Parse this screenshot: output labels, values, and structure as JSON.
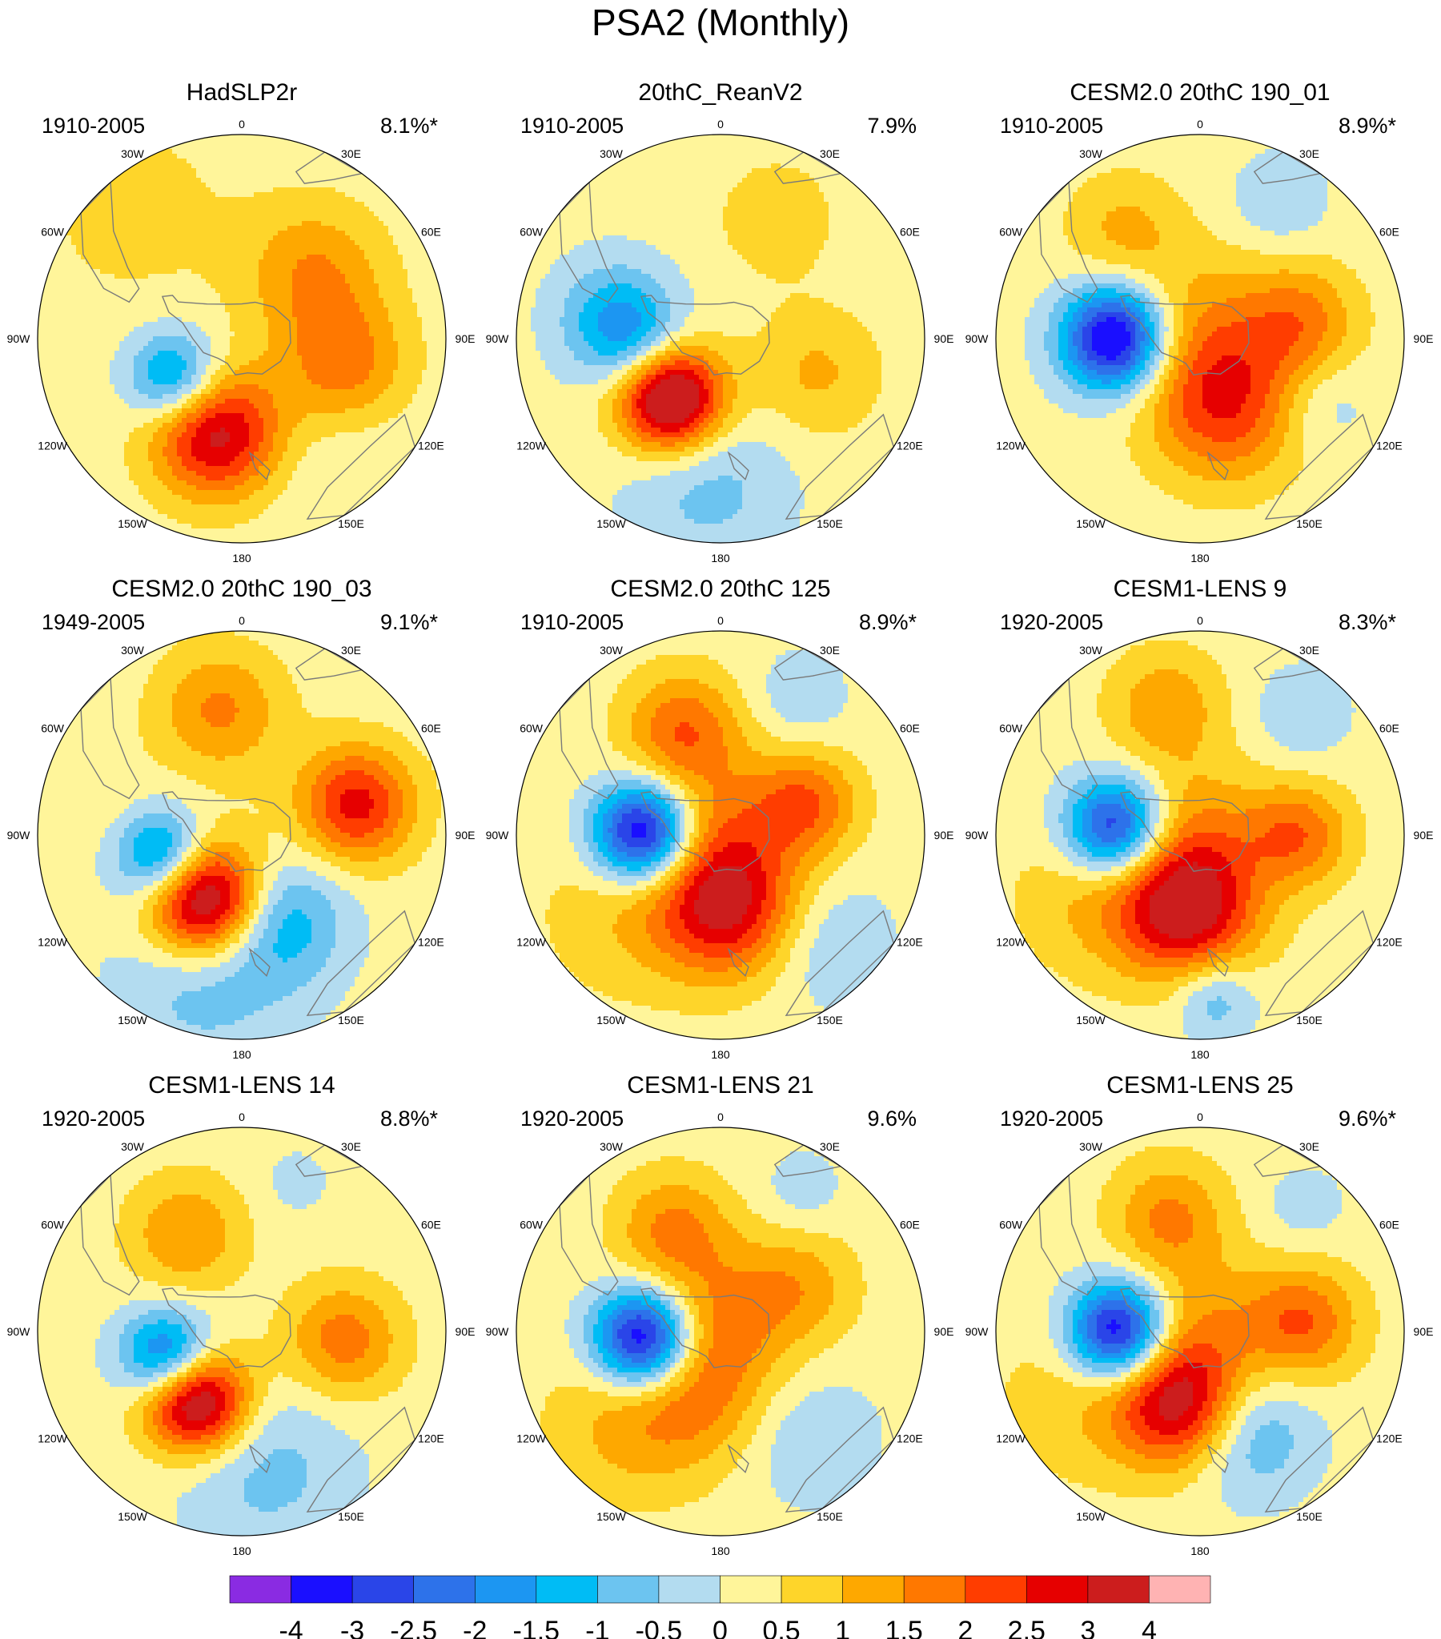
{
  "chart_data": {
    "type": "heatmap",
    "title": "PSA2 (Monthly)",
    "projection": "south-polar-stereographic",
    "longitude_labels": [
      "0",
      "30E",
      "60E",
      "90E",
      "120E",
      "150E",
      "180",
      "150W",
      "120W",
      "90W",
      "60W",
      "30W"
    ],
    "colorbar": {
      "levels": [
        "-4",
        "-3",
        "-2.5",
        "-2",
        "-1.5",
        "-1",
        "-0.5",
        "0",
        "0.5",
        "1",
        "1.5",
        "2",
        "2.5",
        "3",
        "4"
      ],
      "colors": [
        "#8a2be2",
        "#1a0fff",
        "#2a45e8",
        "#2d72ea",
        "#1c96f2",
        "#00bcf5",
        "#6cc4f0",
        "#b3dcf0",
        "#fff59a",
        "#fed52a",
        "#fea800",
        "#ff7800",
        "#ff3d00",
        "#e60000",
        "#cc1d1d",
        "#ffb3b3"
      ]
    },
    "panels": [
      {
        "name": "HadSLP2r",
        "period": "1910-2005",
        "variance": "8.1%*",
        "features": [
          {
            "lon": 48,
            "r": 0.48,
            "v": 1.3,
            "s": 0.24
          },
          {
            "lon": -120,
            "r": 0.38,
            "v": -2.3,
            "s": 0.16
          },
          {
            "lon": 105,
            "r": 0.52,
            "v": 1.6,
            "s": 0.22
          },
          {
            "lon": -165,
            "r": 0.48,
            "v": 3.1,
            "s": 0.22
          },
          {
            "lon": 140,
            "r": 0.72,
            "v": -0.3,
            "s": 0.3
          },
          {
            "lon": -40,
            "r": 0.82,
            "v": 0.45,
            "s": 0.38
          }
        ]
      },
      {
        "name": "20thC_ReanV2",
        "period": "1910-2005",
        "variance": "7.9%",
        "features": [
          {
            "lon": -80,
            "r": 0.52,
            "v": -1.6,
            "s": 0.2
          },
          {
            "lon": -140,
            "r": 0.38,
            "v": 4.2,
            "s": 0.18
          },
          {
            "lon": -175,
            "r": 0.72,
            "v": -0.9,
            "s": 0.28
          },
          {
            "lon": 110,
            "r": 0.5,
            "v": 0.9,
            "s": 0.22
          },
          {
            "lon": 25,
            "r": 0.65,
            "v": 0.6,
            "s": 0.22
          },
          {
            "lon": -95,
            "r": 0.4,
            "v": -0.9,
            "s": 0.16
          }
        ]
      },
      {
        "name": "CESM2.0 20thC 190_01",
        "period": "1910-2005",
        "variance": "8.9%*",
        "features": [
          {
            "lon": -90,
            "r": 0.42,
            "v": -4.2,
            "s": 0.18
          },
          {
            "lon": -35,
            "r": 0.65,
            "v": 0.9,
            "s": 0.2
          },
          {
            "lon": 30,
            "r": 0.78,
            "v": -0.7,
            "s": 0.16
          },
          {
            "lon": 80,
            "r": 0.5,
            "v": 1.4,
            "s": 0.2
          },
          {
            "lon": 160,
            "r": 0.35,
            "v": 2.1,
            "s": 0.26
          },
          {
            "lon": 0,
            "r": 0.05,
            "v": 1.0,
            "s": 0.28
          },
          {
            "lon": 118,
            "r": 0.68,
            "v": -0.6,
            "s": 0.16
          }
        ]
      },
      {
        "name": "CESM2.0 20thC 190_03",
        "period": "1949-2005",
        "variance": "9.1%*",
        "features": [
          {
            "lon": -10,
            "r": 0.62,
            "v": 1.4,
            "s": 0.22
          },
          {
            "lon": -105,
            "r": 0.4,
            "v": -2.6,
            "s": 0.16
          },
          {
            "lon": 75,
            "r": 0.58,
            "v": 2.5,
            "s": 0.2
          },
          {
            "lon": -150,
            "r": 0.36,
            "v": 4.3,
            "s": 0.2
          },
          {
            "lon": 155,
            "r": 0.46,
            "v": -1.5,
            "s": 0.22
          },
          {
            "lon": -165,
            "r": 0.72,
            "v": -1.0,
            "s": 0.3
          },
          {
            "lon": -75,
            "r": 0.72,
            "v": 0.25,
            "s": 0.2
          }
        ]
      },
      {
        "name": "CESM2.0 20thC 125",
        "period": "1910-2005",
        "variance": "8.9%*",
        "features": [
          {
            "lon": -88,
            "r": 0.38,
            "v": -4.2,
            "s": 0.17
          },
          {
            "lon": -20,
            "r": 0.55,
            "v": 1.7,
            "s": 0.2
          },
          {
            "lon": 70,
            "r": 0.45,
            "v": 1.7,
            "s": 0.18
          },
          {
            "lon": 175,
            "r": 0.35,
            "v": 2.8,
            "s": 0.24
          },
          {
            "lon": 0,
            "r": 0.05,
            "v": 1.1,
            "s": 0.26
          },
          {
            "lon": 30,
            "r": 0.78,
            "v": -0.6,
            "s": 0.16
          },
          {
            "lon": 135,
            "r": 0.75,
            "v": -0.7,
            "s": 0.22
          },
          {
            "lon": -130,
            "r": 0.6,
            "v": 0.7,
            "s": 0.3
          }
        ]
      },
      {
        "name": "CESM1-LENS 9",
        "period": "1920-2005",
        "variance": "8.3%*",
        "features": [
          {
            "lon": -85,
            "r": 0.42,
            "v": -3.5,
            "s": 0.17
          },
          {
            "lon": -15,
            "r": 0.65,
            "v": 1.2,
            "s": 0.2
          },
          {
            "lon": 40,
            "r": 0.78,
            "v": -0.7,
            "s": 0.16
          },
          {
            "lon": 90,
            "r": 0.48,
            "v": 1.7,
            "s": 0.18
          },
          {
            "lon": -170,
            "r": 0.36,
            "v": 3.2,
            "s": 0.24
          },
          {
            "lon": 0,
            "r": 0.05,
            "v": 0.9,
            "s": 0.24
          },
          {
            "lon": 175,
            "r": 0.8,
            "v": -1.2,
            "s": 0.14
          },
          {
            "lon": -120,
            "r": 0.6,
            "v": 0.8,
            "s": 0.28
          }
        ]
      },
      {
        "name": "CESM1-LENS 14",
        "period": "1920-2005",
        "variance": "8.8%*",
        "features": [
          {
            "lon": -30,
            "r": 0.55,
            "v": 1.3,
            "s": 0.2
          },
          {
            "lon": -110,
            "r": 0.38,
            "v": -3.1,
            "s": 0.16
          },
          {
            "lon": 95,
            "r": 0.5,
            "v": 1.6,
            "s": 0.2
          },
          {
            "lon": -145,
            "r": 0.4,
            "v": 4.2,
            "s": 0.18
          },
          {
            "lon": 170,
            "r": 0.68,
            "v": -0.9,
            "s": 0.3
          },
          {
            "lon": 20,
            "r": 0.78,
            "v": -0.4,
            "s": 0.12
          }
        ]
      },
      {
        "name": "CESM1-LENS 21",
        "period": "1920-2005",
        "variance": "9.6%",
        "features": [
          {
            "lon": -95,
            "r": 0.38,
            "v": -4.2,
            "s": 0.17
          },
          {
            "lon": -25,
            "r": 0.55,
            "v": 1.4,
            "s": 0.2
          },
          {
            "lon": 60,
            "r": 0.45,
            "v": 1.0,
            "s": 0.2
          },
          {
            "lon": 0,
            "r": 0.05,
            "v": 1.3,
            "s": 0.25
          },
          {
            "lon": -160,
            "r": 0.35,
            "v": 1.1,
            "s": 0.24
          },
          {
            "lon": 140,
            "r": 0.7,
            "v": -0.7,
            "s": 0.22
          },
          {
            "lon": -135,
            "r": 0.65,
            "v": 0.9,
            "s": 0.28
          },
          {
            "lon": 30,
            "r": 0.8,
            "v": -0.5,
            "s": 0.14
          }
        ]
      },
      {
        "name": "CESM1-LENS 25",
        "period": "1920-2005",
        "variance": "9.6%*",
        "features": [
          {
            "lon": -90,
            "r": 0.4,
            "v": -4.1,
            "s": 0.17
          },
          {
            "lon": -15,
            "r": 0.58,
            "v": 1.4,
            "s": 0.2
          },
          {
            "lon": 85,
            "r": 0.5,
            "v": 1.8,
            "s": 0.2
          },
          {
            "lon": -165,
            "r": 0.36,
            "v": 3.1,
            "s": 0.22
          },
          {
            "lon": 155,
            "r": 0.55,
            "v": -1.4,
            "s": 0.22
          },
          {
            "lon": 0,
            "r": 0.05,
            "v": 0.9,
            "s": 0.24
          },
          {
            "lon": -120,
            "r": 0.65,
            "v": 0.7,
            "s": 0.3
          },
          {
            "lon": 40,
            "r": 0.8,
            "v": -0.5,
            "s": 0.14
          }
        ]
      }
    ]
  }
}
